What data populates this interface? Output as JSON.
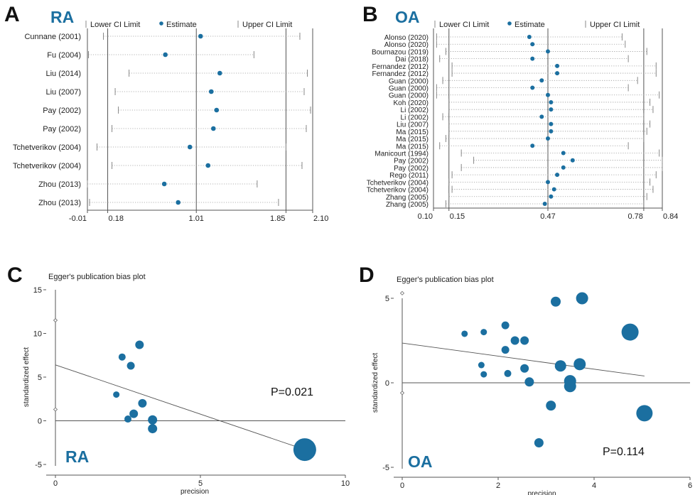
{
  "colors": {
    "marker": "#1b6fa0",
    "axis": "#555555",
    "ci": "#888888"
  },
  "panels": {
    "A": {
      "letter": "A",
      "tag": "RA"
    },
    "B": {
      "letter": "B",
      "tag": "OA"
    },
    "C": {
      "letter": "C",
      "tag": "RA",
      "p_text": "P=0.021"
    },
    "D": {
      "letter": "D",
      "tag": "OA",
      "p_text": "P=0.114"
    }
  },
  "chart_data": [
    {
      "type": "scatter",
      "panel": "A",
      "chart_kind": "forest",
      "legend": [
        "Lower CI Limit",
        "Estimate",
        "Upper CI Limit"
      ],
      "xticks": [
        -0.01,
        0.18,
        1.01,
        1.85,
        2.1
      ],
      "xtick_labels": [
        "-0.01",
        "0.18",
        "1.01",
        "1.85",
        "2.10"
      ],
      "xlim": [
        -0.01,
        2.1
      ],
      "studies": [
        {
          "label": "Cunnane (2001)",
          "lower": 0.14,
          "estimate": 1.05,
          "upper": 1.98
        },
        {
          "label": "Fu (2004)",
          "lower": 0.0,
          "estimate": 0.72,
          "upper": 1.55
        },
        {
          "label": "Liu (2014)",
          "lower": 0.38,
          "estimate": 1.23,
          "upper": 2.05
        },
        {
          "label": "Liu (2007)",
          "lower": 0.25,
          "estimate": 1.15,
          "upper": 2.02
        },
        {
          "label": "Pay (2002)",
          "lower": 0.28,
          "estimate": 1.2,
          "upper": 2.08
        },
        {
          "label": "Pay (2002)",
          "lower": 0.22,
          "estimate": 1.17,
          "upper": 2.04
        },
        {
          "label": "Tchetverikov (2004)",
          "lower": 0.08,
          "estimate": 0.95,
          "upper": 1.85
        },
        {
          "label": "Tchetverikov (2004)",
          "lower": 0.22,
          "estimate": 1.12,
          "upper": 2.0
        },
        {
          "label": "Zhou (2013)",
          "lower": -0.01,
          "estimate": 0.71,
          "upper": 1.58
        },
        {
          "label": "Zhou (2013)",
          "lower": 0.01,
          "estimate": 0.84,
          "upper": 1.78
        }
      ]
    },
    {
      "type": "scatter",
      "panel": "B",
      "chart_kind": "forest",
      "legend": [
        "Lower CI Limit",
        "Estimate",
        "Upper CI Limit"
      ],
      "xticks": [
        0.1,
        0.15,
        0.47,
        0.78,
        0.84
      ],
      "xtick_labels": [
        "0.10",
        "0.15",
        "0.47",
        "0.78",
        "0.84"
      ],
      "xlim": [
        0.1,
        0.84
      ],
      "studies": [
        {
          "label": "Alonso (2020)",
          "lower": 0.11,
          "estimate": 0.41,
          "upper": 0.71
        },
        {
          "label": "Alonso (2020)",
          "lower": 0.11,
          "estimate": 0.42,
          "upper": 0.72
        },
        {
          "label": "Bournazou (2019)",
          "lower": 0.14,
          "estimate": 0.47,
          "upper": 0.79
        },
        {
          "label": "Dai (2018)",
          "lower": 0.12,
          "estimate": 0.42,
          "upper": 0.73
        },
        {
          "label": "Fernandez (2012)",
          "lower": 0.16,
          "estimate": 0.5,
          "upper": 0.82
        },
        {
          "label": "Fernandez (2012)",
          "lower": 0.16,
          "estimate": 0.5,
          "upper": 0.82
        },
        {
          "label": "Guan (2000)",
          "lower": 0.13,
          "estimate": 0.45,
          "upper": 0.76
        },
        {
          "label": "Guan (2000)",
          "lower": 0.11,
          "estimate": 0.42,
          "upper": 0.73
        },
        {
          "label": "Guan (2000)",
          "lower": 0.11,
          "estimate": 0.47,
          "upper": 0.83
        },
        {
          "label": "Koh (2020)",
          "lower": 0.15,
          "estimate": 0.48,
          "upper": 0.8
        },
        {
          "label": "Li (2002)",
          "lower": 0.15,
          "estimate": 0.48,
          "upper": 0.81
        },
        {
          "label": "Li (2002)",
          "lower": 0.13,
          "estimate": 0.45,
          "upper": 0.78
        },
        {
          "label": "Liu (2007)",
          "lower": 0.15,
          "estimate": 0.48,
          "upper": 0.8
        },
        {
          "label": "Ma (2015)",
          "lower": 0.15,
          "estimate": 0.48,
          "upper": 0.79
        },
        {
          "label": "Ma (2015)",
          "lower": 0.14,
          "estimate": 0.47,
          "upper": 0.78
        },
        {
          "label": "Ma (2015)",
          "lower": 0.12,
          "estimate": 0.42,
          "upper": 0.73
        },
        {
          "label": "Manicourt (1994)",
          "lower": 0.19,
          "estimate": 0.52,
          "upper": 0.83
        },
        {
          "label": "Pay (2002)",
          "lower": 0.23,
          "estimate": 0.55,
          "upper": 0.84
        },
        {
          "label": "Pay (2002)",
          "lower": 0.19,
          "estimate": 0.52,
          "upper": 0.84
        },
        {
          "label": "Rego (2011)",
          "lower": 0.16,
          "estimate": 0.5,
          "upper": 0.82
        },
        {
          "label": "Tchetverikov (2004)",
          "lower": 0.15,
          "estimate": 0.47,
          "upper": 0.8
        },
        {
          "label": "Tchetverikov (2004)",
          "lower": 0.16,
          "estimate": 0.49,
          "upper": 0.81
        },
        {
          "label": "Zhang (2005)",
          "lower": 0.15,
          "estimate": 0.48,
          "upper": 0.79
        },
        {
          "label": "Zhang (2005)",
          "lower": 0.14,
          "estimate": 0.46,
          "upper": 0.78
        }
      ]
    },
    {
      "type": "scatter",
      "panel": "C",
      "title": "Egger's publication bias plot",
      "xlabel": "precision",
      "ylabel": "standardized effect",
      "xlim": [
        0,
        10
      ],
      "ylim": [
        -5,
        15
      ],
      "xticks": [
        0,
        5,
        10
      ],
      "yticks": [
        -5,
        0,
        5,
        10,
        15
      ],
      "axis_markers": [
        11.5,
        1.3
      ],
      "regression": {
        "x0": 0,
        "y0": 6.4,
        "x1": 8.6,
        "y1": -3.3
      },
      "points": [
        {
          "x": 2.3,
          "y": 7.3,
          "size": 1.0
        },
        {
          "x": 2.9,
          "y": 8.7,
          "size": 1.2
        },
        {
          "x": 2.6,
          "y": 6.3,
          "size": 1.1
        },
        {
          "x": 2.1,
          "y": 3.0,
          "size": 0.9
        },
        {
          "x": 3.0,
          "y": 2.0,
          "size": 1.2
        },
        {
          "x": 2.7,
          "y": 0.8,
          "size": 1.2
        },
        {
          "x": 2.5,
          "y": 0.2,
          "size": 1.0
        },
        {
          "x": 3.35,
          "y": 0.1,
          "size": 1.3
        },
        {
          "x": 3.35,
          "y": -0.9,
          "size": 1.3
        },
        {
          "x": 8.6,
          "y": -3.3,
          "size": 3.2
        }
      ]
    },
    {
      "type": "scatter",
      "panel": "D",
      "title": "Egger's publication bias plot",
      "xlabel": "precision",
      "ylabel": "standardized effect",
      "xlim": [
        0,
        6
      ],
      "ylim": [
        -5,
        5
      ],
      "xticks": [
        0,
        2,
        4,
        6
      ],
      "yticks": [
        -5,
        0,
        5
      ],
      "axis_markers": [
        5.3,
        -0.6
      ],
      "regression": {
        "x0": 0,
        "y0": 2.35,
        "x1": 5.05,
        "y1": 0.4
      },
      "points": [
        {
          "x": 1.3,
          "y": 2.9,
          "size": 0.9
        },
        {
          "x": 1.7,
          "y": 3.0,
          "size": 0.9
        },
        {
          "x": 2.15,
          "y": 3.4,
          "size": 1.1
        },
        {
          "x": 2.35,
          "y": 2.5,
          "size": 1.2
        },
        {
          "x": 2.55,
          "y": 2.5,
          "size": 1.2
        },
        {
          "x": 2.15,
          "y": 1.95,
          "size": 1.1
        },
        {
          "x": 1.65,
          "y": 1.05,
          "size": 0.9
        },
        {
          "x": 1.7,
          "y": 0.5,
          "size": 0.9
        },
        {
          "x": 2.2,
          "y": 0.55,
          "size": 1.0
        },
        {
          "x": 2.55,
          "y": 0.85,
          "size": 1.2
        },
        {
          "x": 2.65,
          "y": 0.05,
          "size": 1.3
        },
        {
          "x": 3.2,
          "y": 4.8,
          "size": 1.4
        },
        {
          "x": 3.75,
          "y": 5.0,
          "size": 1.7
        },
        {
          "x": 3.3,
          "y": 1.0,
          "size": 1.6
        },
        {
          "x": 3.7,
          "y": 1.1,
          "size": 1.7
        },
        {
          "x": 3.5,
          "y": 0.1,
          "size": 1.7
        },
        {
          "x": 3.5,
          "y": -0.2,
          "size": 1.7
        },
        {
          "x": 3.1,
          "y": -1.35,
          "size": 1.4
        },
        {
          "x": 4.75,
          "y": 3.0,
          "size": 2.4
        },
        {
          "x": 5.05,
          "y": -1.8,
          "size": 2.3
        },
        {
          "x": 2.85,
          "y": -3.55,
          "size": 1.3
        }
      ]
    }
  ]
}
